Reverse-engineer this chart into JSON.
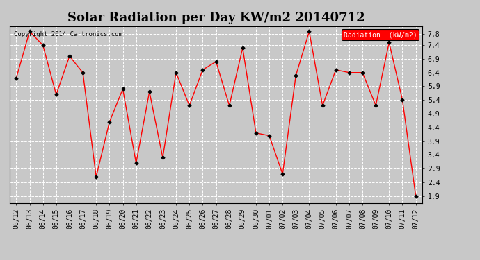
{
  "title": "Solar Radiation per Day KW/m2 20140712",
  "copyright": "Copyright 2014 Cartronics.com",
  "legend_label": "Radiation  (kW/m2)",
  "dates": [
    "06/12",
    "06/13",
    "06/14",
    "06/15",
    "06/16",
    "06/17",
    "06/18",
    "06/19",
    "06/20",
    "06/21",
    "06/22",
    "06/23",
    "06/24",
    "06/25",
    "06/26",
    "06/27",
    "06/28",
    "06/29",
    "06/30",
    "07/01",
    "07/02",
    "07/03",
    "07/04",
    "07/05",
    "07/06",
    "07/07",
    "07/08",
    "07/09",
    "07/10",
    "07/11",
    "07/12"
  ],
  "values": [
    6.2,
    7.9,
    7.4,
    5.6,
    7.0,
    6.4,
    2.6,
    4.6,
    5.8,
    3.1,
    5.7,
    3.3,
    6.4,
    5.2,
    6.5,
    6.8,
    5.2,
    7.3,
    4.2,
    4.1,
    2.7,
    6.3,
    7.9,
    5.2,
    6.5,
    6.4,
    6.4,
    5.2,
    7.5,
    5.4,
    1.9
  ],
  "yticks": [
    1.9,
    2.4,
    2.9,
    3.4,
    3.9,
    4.4,
    4.9,
    5.4,
    5.9,
    6.4,
    6.9,
    7.4,
    7.8
  ],
  "ylim": [
    1.65,
    8.1
  ],
  "line_color": "red",
  "marker_color": "black",
  "fig_bg_color": "#c8c8c8",
  "plot_bg_color": "#c8c8c8",
  "grid_color": "white",
  "legend_bg": "red",
  "legend_text_color": "white",
  "title_fontsize": 13,
  "tick_fontsize": 7,
  "copyright_fontsize": 6.5
}
